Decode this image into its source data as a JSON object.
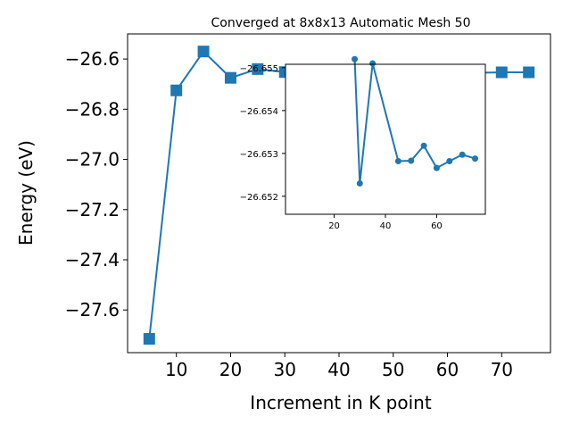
{
  "chart_data": [
    {
      "type": "line",
      "title": "Converged at 8x8x13 Automatic Mesh 50",
      "xlabel": "Increment in K point",
      "ylabel": "Energy (eV)",
      "xlim": [
        1,
        79
      ],
      "ylim": [
        -27.77,
        -26.5
      ],
      "x_ticks": [
        "10",
        "20",
        "30",
        "40",
        "50",
        "60",
        "70"
      ],
      "y_ticks": [
        "−26.6",
        "−26.8",
        "−27.0",
        "−27.2",
        "−27.4",
        "−27.6"
      ],
      "grid": false,
      "marker": "square",
      "color": "#1f77b4",
      "series": [
        {
          "x": [
            5,
            10,
            15,
            20,
            25,
            30,
            35,
            40,
            45,
            50,
            55,
            60,
            65,
            70,
            75
          ],
          "values": [
            -27.715,
            -26.725,
            -26.57,
            -26.675,
            -26.64,
            -26.652,
            -26.655,
            -26.655,
            -26.655,
            -26.655,
            -26.655,
            -26.655,
            -26.655,
            -26.653,
            -26.653
          ]
        }
      ]
    },
    {
      "type": "line",
      "xlim": [
        1,
        79
      ],
      "ylim": [
        -26.65158,
        -26.65508
      ],
      "x_ticks": [
        "20",
        "40",
        "60"
      ],
      "y_ticks": [
        "−26.655",
        "−26.654",
        "−26.653",
        "−26.652"
      ],
      "grid": false,
      "marker": "circle",
      "color": "#1f77b4",
      "series": [
        {
          "x": [
            28,
            30,
            35,
            45,
            50,
            55,
            60,
            65,
            70,
            75
          ],
          "values": [
            -26.6552,
            -26.6523,
            -26.6551,
            -26.65282,
            -26.65283,
            -26.65318,
            -26.65266,
            -26.65282,
            -26.65297,
            -26.65288
          ]
        }
      ]
    }
  ]
}
